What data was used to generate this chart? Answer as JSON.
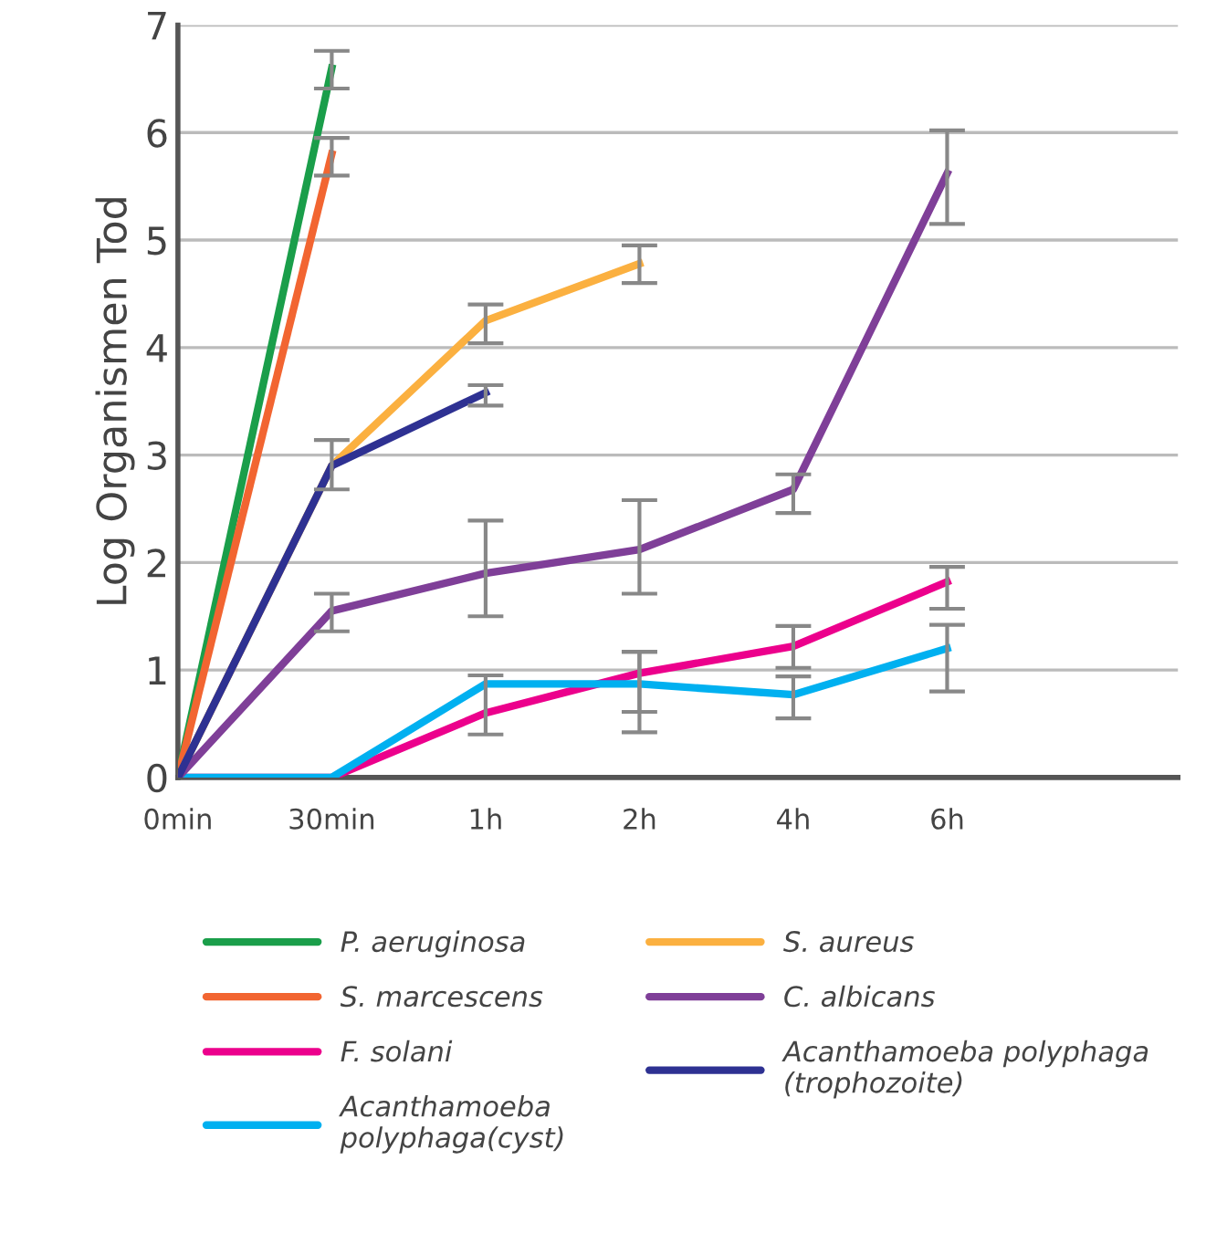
{
  "chart_data": {
    "type": "line",
    "ylabel": "Log Organismen Tod",
    "categories": [
      "0min",
      "30min",
      "1h",
      "2h",
      "4h",
      "6h"
    ],
    "ylim": [
      0,
      7
    ],
    "yticks": [
      0,
      1,
      2,
      3,
      4,
      5,
      6,
      7
    ],
    "grid": "y",
    "legend": "bottom",
    "marker": "none",
    "line_style": "solid",
    "series": [
      {
        "name": "P. aeruginosa",
        "color": "#1a9e4a",
        "values": [
          0,
          6.6,
          null,
          null,
          null,
          null
        ],
        "errors": [
          null,
          [
            6.41,
            6.76
          ],
          null,
          null,
          null,
          null
        ]
      },
      {
        "name": "S. marcescens",
        "color": "#f26531",
        "values": [
          0,
          5.8,
          null,
          null,
          null,
          null
        ],
        "errors": [
          null,
          [
            5.6,
            5.95
          ],
          null,
          null,
          null,
          null
        ]
      },
      {
        "name": "F. solani",
        "color": "#ec008c",
        "values": [
          0,
          0,
          0.6,
          0.97,
          1.22,
          1.82
        ],
        "errors": [
          null,
          null,
          [
            0.4,
            0.95
          ],
          [
            0.61,
            1.17
          ],
          [
            1.02,
            1.41
          ],
          [
            1.57,
            1.96
          ]
        ]
      },
      {
        "name": "Acanthamoeba\npolyphaga(cyst)",
        "color": "#00b0f0",
        "values": [
          0,
          0,
          0.87,
          0.87,
          0.77,
          1.2
        ],
        "errors": [
          null,
          null,
          null,
          [
            0.42,
            1.17
          ],
          [
            0.55,
            0.94
          ],
          [
            0.8,
            1.42
          ]
        ]
      },
      {
        "name": "S. aureus",
        "color": "#fbb040",
        "values": [
          0,
          2.9,
          4.25,
          4.78,
          null,
          null
        ],
        "errors": [
          null,
          null,
          [
            4.04,
            4.4
          ],
          [
            4.6,
            4.95
          ],
          null,
          null
        ]
      },
      {
        "name": "C. albicans",
        "color": "#7f3f98",
        "values": [
          0,
          1.55,
          1.9,
          2.12,
          2.68,
          5.62
        ],
        "errors": [
          null,
          [
            1.36,
            1.71
          ],
          [
            1.5,
            2.39
          ],
          [
            1.71,
            2.58
          ],
          [
            2.46,
            2.82
          ],
          [
            5.15,
            6.02
          ]
        ]
      },
      {
        "name": "Acanthamoeba polyphaga\n(trophozoite)",
        "color": "#2e3192",
        "values": [
          0,
          2.9,
          3.58,
          null,
          null,
          null
        ],
        "errors": [
          null,
          [
            2.68,
            3.14
          ],
          [
            3.46,
            3.65
          ],
          null,
          null,
          null
        ]
      }
    ]
  }
}
